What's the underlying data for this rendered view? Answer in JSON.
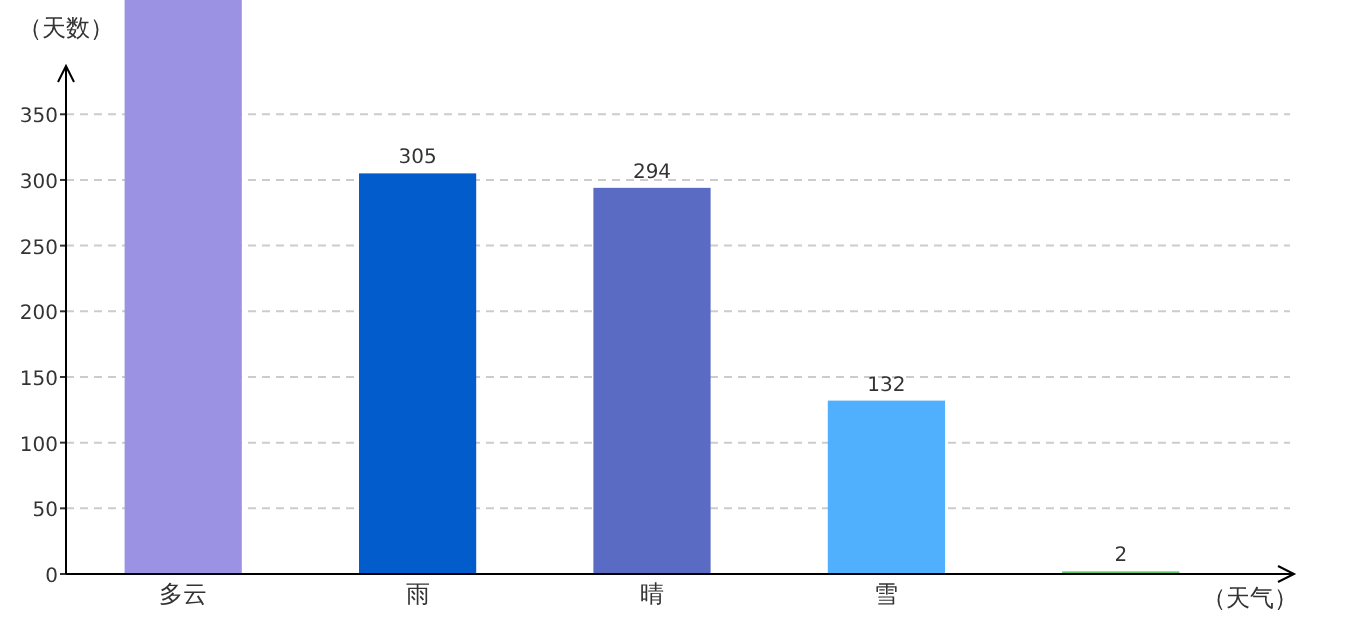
{
  "chart_data": {
    "type": "bar",
    "ylabel": "（天数）",
    "xlabel": "（天气）",
    "categories": [
      "多云",
      "雨",
      "晴",
      "雪",
      null
    ],
    "values": [
      437,
      305,
      294,
      132,
      2
    ],
    "colors": [
      "#9b92e4",
      "#035ccc",
      "#5a6bc3",
      "#50b0fe",
      "#5bc86a"
    ],
    "value_labels": [
      null,
      "305",
      "294",
      "132",
      "2"
    ],
    "ylim": [
      0,
      437
    ],
    "yticks": [
      0,
      50,
      100,
      150,
      200,
      250,
      300,
      350
    ],
    "grid": "y"
  }
}
